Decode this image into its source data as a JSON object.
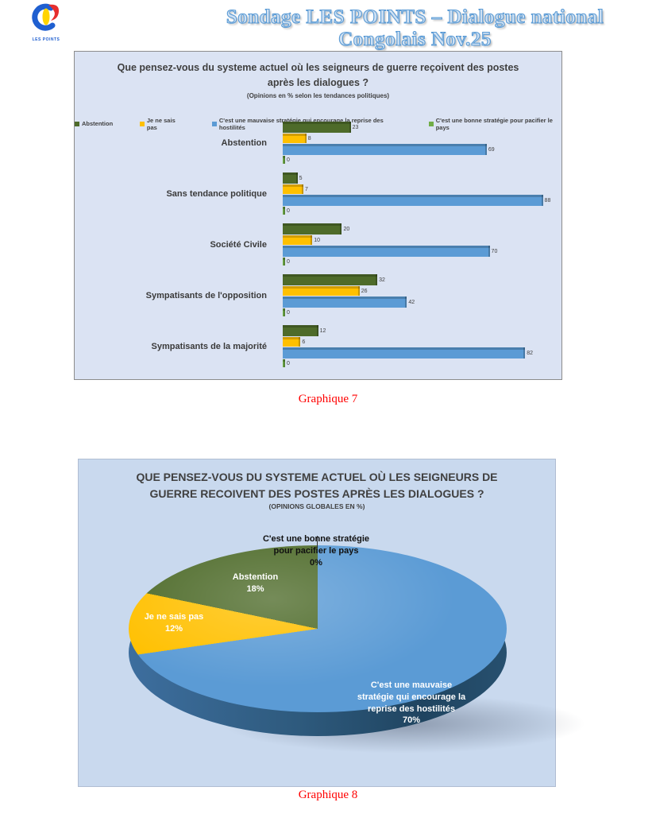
{
  "header": {
    "title": "Sondage LES POINTS – Dialogue national Congolais  Nov.25",
    "logo_text": "LES POINTS",
    "logo_colors": {
      "blue": "#1f5fd0",
      "yellow": "#ffd400",
      "red": "#e62e2e"
    }
  },
  "captions": {
    "bar": "Graphique 7",
    "pie": "Graphique 8",
    "color": "#ff0000"
  },
  "chart_data": [
    {
      "id": "graphique-7",
      "type": "bar",
      "orientation": "horizontal",
      "title": "Que pensez-vous du systeme actuel où les seigneurs de guerre reçoivent des postes\naprès les dialogues ?",
      "subtitle": "(Opinions en % selon les tendances politiques)",
      "legend_position": "top",
      "grid": false,
      "xlim": [
        0,
        90
      ],
      "categories": [
        "Abstention",
        "Sans tendance politique",
        "Société Civile",
        "Sympatisants de l'opposition",
        "Sympatisants de la majorité"
      ],
      "series": [
        {
          "name": "Abstention",
          "color": "#4e6b2a",
          "values": [
            23,
            5,
            20,
            32,
            12
          ]
        },
        {
          "name": "Je ne sais pas",
          "color": "#ffc000",
          "values": [
            8,
            7,
            10,
            26,
            6
          ]
        },
        {
          "name": "C'est une mauvaise stratégie qui encourage la reprise des hostilités",
          "color": "#5b9bd5",
          "values": [
            69,
            88,
            70,
            42,
            82
          ]
        },
        {
          "name": "C'est une bonne stratégie pour pacifier le pays",
          "color": "#70ad47",
          "values": [
            0,
            0,
            0,
            0,
            0
          ]
        }
      ]
    },
    {
      "id": "graphique-8",
      "type": "pie",
      "title": "QUE PENSEZ-VOUS DU SYSTEME ACTUEL OÙ LES SEIGNEURS DE\nGUERRE RECOIVENT DES POSTES APRÈS LES DIALOGUES ?",
      "subtitle": "(OPINIONS GLOBALES EN %)",
      "slices": [
        {
          "label": "C'est une mauvaise stratégie qui encourage la reprise des hostilités",
          "label_display": "C'est une mauvaise\nstratégie qui encourage la\nreprise des hostilités",
          "value": 70,
          "pct": "70%",
          "color": "#5b9bd5"
        },
        {
          "label": "Je ne sais pas",
          "label_display": "Je ne sais pas",
          "value": 12,
          "pct": "12%",
          "color": "#ffc000"
        },
        {
          "label": "Abstention",
          "label_display": "Abstention",
          "value": 18,
          "pct": "18%",
          "color": "#4e6b2a"
        },
        {
          "label": "C'est une bonne stratégie pour pacifier le pays",
          "label_display": "C'est une bonne stratégie\npour pacifier le pays",
          "value": 0,
          "pct": "0%",
          "color": "#70ad47"
        }
      ]
    }
  ]
}
